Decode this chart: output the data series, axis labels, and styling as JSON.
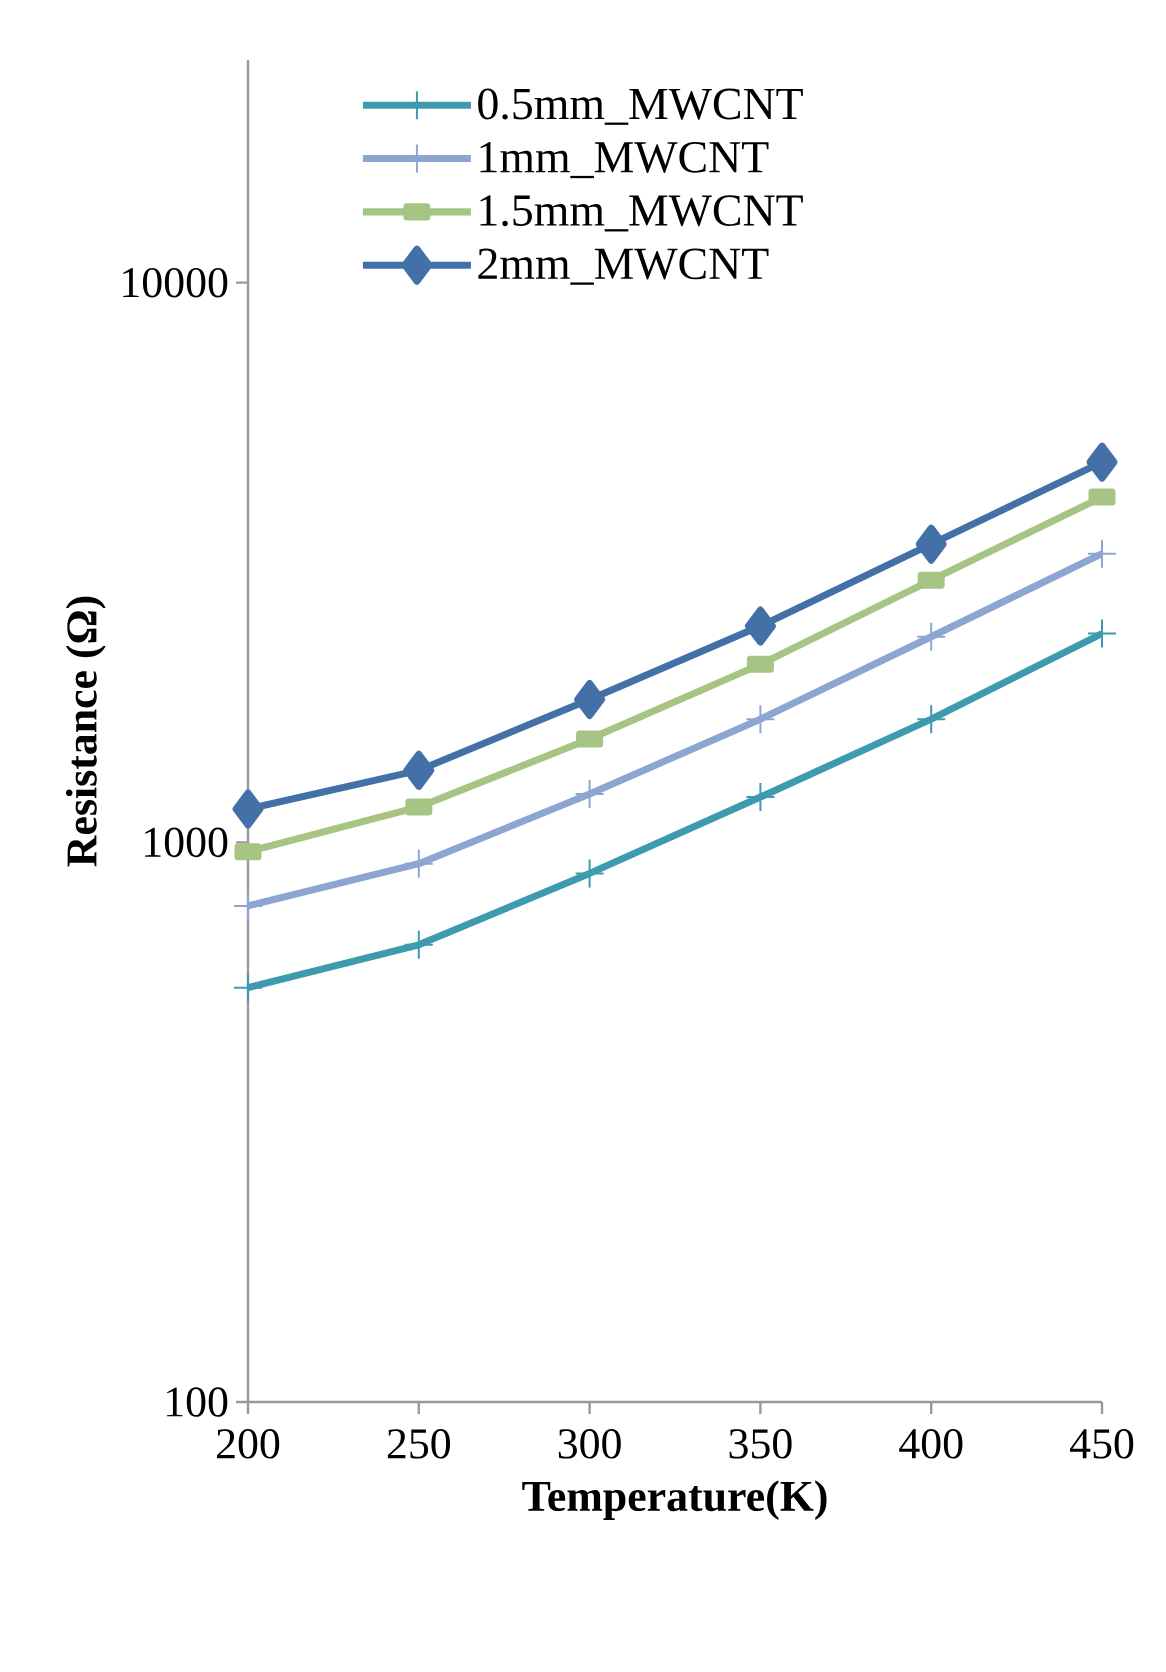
{
  "chart_data": {
    "type": "line",
    "xlabel": "Temperature(K)",
    "ylabel": "Resistance (Ω)",
    "x": [
      200,
      250,
      300,
      350,
      400,
      450
    ],
    "xlim": [
      200,
      450
    ],
    "xticks": [
      200,
      250,
      300,
      350,
      400,
      450
    ],
    "ylim": [
      100,
      25000
    ],
    "yticks": [
      100,
      1000,
      10000
    ],
    "log": true,
    "legend": "top",
    "series": [
      {
        "name": "0.5mm_MWCNT",
        "color": "#3e9aae",
        "marker": "cross",
        "values": [
          550,
          656,
          880,
          1205,
          1660,
          2360
        ]
      },
      {
        "name": "1mm_MWCNT",
        "color": "#8da6d1",
        "marker": "cross",
        "values": [
          770,
          916,
          1220,
          1660,
          2330,
          3280
        ]
      },
      {
        "name": "1.5mm_MWCNT",
        "color": "#a6c483",
        "marker": "square",
        "values": [
          962,
          1157,
          1530,
          2080,
          2940,
          4140
        ]
      },
      {
        "name": "2mm_MWCNT",
        "color": "#4470a8",
        "marker": "diamond",
        "values": [
          1147,
          1345,
          1800,
          2435,
          3410,
          4780
        ]
      }
    ]
  }
}
